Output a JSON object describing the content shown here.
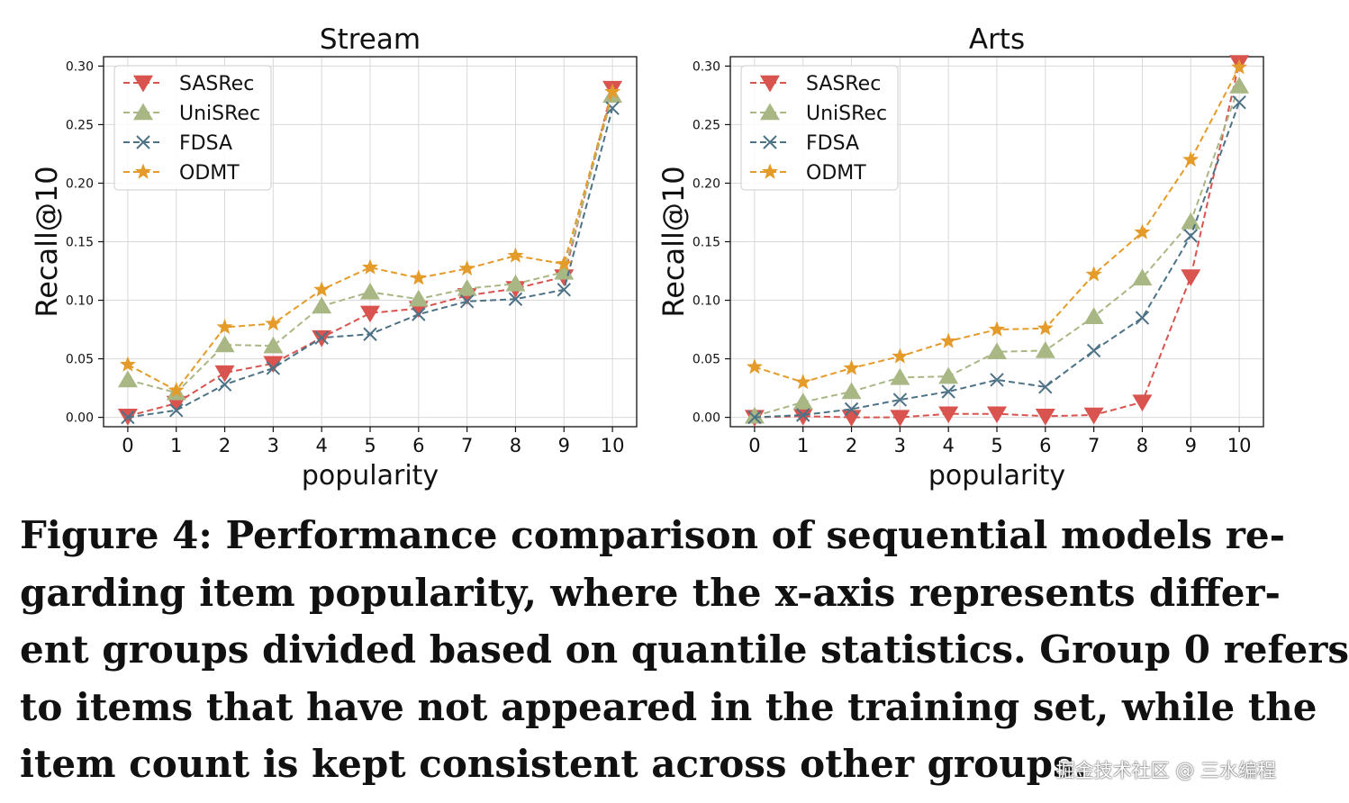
{
  "chart_data": [
    {
      "type": "line",
      "title": "Stream",
      "xlabel": "popularity",
      "ylabel": "Recall@10",
      "x": [
        0,
        1,
        2,
        3,
        4,
        5,
        6,
        7,
        8,
        9,
        10
      ],
      "xticks": [
        "0",
        "1",
        "2",
        "3",
        "4",
        "5",
        "6",
        "7",
        "8",
        "9",
        "10"
      ],
      "ylim": [
        0,
        0.3
      ],
      "yticks": [
        "0.00",
        "0.05",
        "0.10",
        "0.15",
        "0.20",
        "0.25",
        "0.30"
      ],
      "grid": true,
      "legend_position": "top-left",
      "series": [
        {
          "name": "SASRec",
          "color": "#d9534f",
          "marker": "triangle-down",
          "values": [
            0.001,
            0.012,
            0.038,
            0.046,
            0.068,
            0.089,
            0.093,
            0.104,
            0.11,
            0.12,
            0.281
          ]
        },
        {
          "name": "UniSRec",
          "color": "#a9b785",
          "marker": "triangle-up",
          "values": [
            0.032,
            0.021,
            0.062,
            0.061,
            0.095,
            0.107,
            0.101,
            0.11,
            0.114,
            0.124,
            0.275
          ]
        },
        {
          "name": "FDSA",
          "color": "#4d7286",
          "marker": "x",
          "values": [
            0.0,
            0.006,
            0.028,
            0.042,
            0.068,
            0.071,
            0.088,
            0.099,
            0.101,
            0.109,
            0.264
          ]
        },
        {
          "name": "ODMT",
          "color": "#e49b2a",
          "marker": "star",
          "values": [
            0.045,
            0.023,
            0.077,
            0.08,
            0.109,
            0.128,
            0.119,
            0.127,
            0.138,
            0.131,
            0.278
          ]
        }
      ]
    },
    {
      "type": "line",
      "title": "Arts",
      "xlabel": "popularity",
      "ylabel": "Recall@10",
      "x": [
        0,
        1,
        2,
        3,
        4,
        5,
        6,
        7,
        8,
        9,
        10
      ],
      "xticks": [
        "0",
        "1",
        "2",
        "3",
        "4",
        "5",
        "6",
        "7",
        "8",
        "9",
        "10"
      ],
      "ylim": [
        0,
        0.3
      ],
      "yticks": [
        "0.00",
        "0.05",
        "0.10",
        "0.15",
        "0.20",
        "0.25",
        "0.30"
      ],
      "grid": true,
      "legend_position": "top-left",
      "series": [
        {
          "name": "SASRec",
          "color": "#d9534f",
          "marker": "triangle-down",
          "values": [
            0.0,
            0.001,
            0.0,
            0.0,
            0.003,
            0.003,
            0.001,
            0.002,
            0.013,
            0.12,
            0.303
          ]
        },
        {
          "name": "UniSRec",
          "color": "#a9b785",
          "marker": "triangle-up",
          "values": [
            0.001,
            0.013,
            0.022,
            0.034,
            0.035,
            0.056,
            0.057,
            0.086,
            0.119,
            0.167,
            0.283
          ]
        },
        {
          "name": "FDSA",
          "color": "#4d7286",
          "marker": "x",
          "values": [
            0.0,
            0.002,
            0.007,
            0.015,
            0.022,
            0.032,
            0.026,
            0.057,
            0.085,
            0.155,
            0.269
          ]
        },
        {
          "name": "ODMT",
          "color": "#e49b2a",
          "marker": "star",
          "values": [
            0.043,
            0.03,
            0.042,
            0.052,
            0.065,
            0.075,
            0.076,
            0.122,
            0.158,
            0.22,
            0.299
          ]
        }
      ]
    }
  ],
  "caption": {
    "lines": [
      "Figure 4: Performance comparison of sequential models re-",
      "garding item popularity, where the x-axis represents differ-",
      "ent groups divided based on quantile statistics. Group 0 refers",
      "to items that have not appeared in the training set, while the",
      "item count is kept consistent across other groups."
    ]
  },
  "watermark": "掘金技术社区 @ 三水编程"
}
